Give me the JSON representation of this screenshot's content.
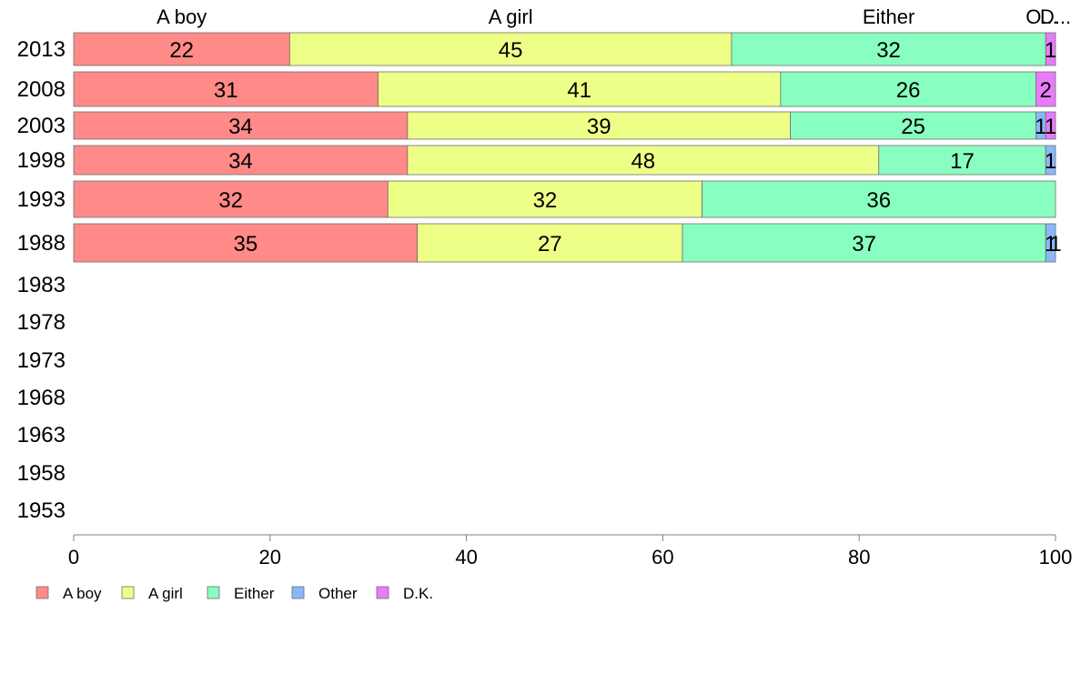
{
  "chart_data": {
    "type": "bar",
    "orientation": "horizontal",
    "stacked": true,
    "categories": [
      "2013",
      "2008",
      "2003",
      "1998",
      "1993",
      "1988",
      "1983",
      "1978",
      "1973",
      "1968",
      "1963",
      "1958",
      "1953"
    ],
    "series": [
      {
        "name": "A boy",
        "color": "#ff8a87",
        "values": [
          22,
          31,
          34,
          34,
          32,
          35,
          null,
          null,
          null,
          null,
          null,
          null,
          null
        ]
      },
      {
        "name": "A girl",
        "color": "#eeff88",
        "values": [
          45,
          41,
          39,
          48,
          32,
          27,
          null,
          null,
          null,
          null,
          null,
          null,
          null
        ]
      },
      {
        "name": "Either",
        "color": "#88ffc0",
        "values": [
          32,
          26,
          25,
          17,
          36,
          37,
          null,
          null,
          null,
          null,
          null,
          null,
          null
        ]
      },
      {
        "name": "Other",
        "color": "#88b8f8",
        "values": [
          0,
          0,
          1,
          1,
          0,
          1,
          null,
          null,
          null,
          null,
          null,
          null,
          null
        ]
      },
      {
        "name": "D.K.",
        "color": "#e87cf8",
        "values": [
          1,
          2,
          1,
          0,
          0,
          1,
          null,
          null,
          null,
          null,
          null,
          null,
          null
        ]
      }
    ],
    "top_labels": [
      "A boy",
      "A girl",
      "Either",
      "O...",
      "D..."
    ],
    "xlim": [
      0,
      100
    ],
    "x_ticks": [
      0,
      20,
      40,
      60,
      80,
      100
    ],
    "xlabel": "",
    "ylabel": "",
    "title": "",
    "grid": false,
    "legend_position": "bottom-left"
  }
}
